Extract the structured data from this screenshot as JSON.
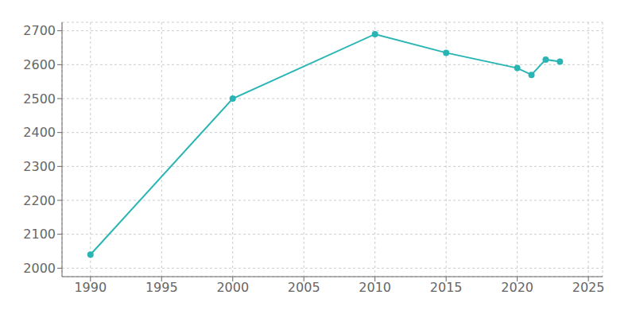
{
  "chart_data": {
    "type": "line",
    "x": [
      1990,
      2000,
      2010,
      2015,
      2020,
      2021,
      2022,
      2023
    ],
    "values": [
      2040,
      2500,
      2690,
      2635,
      2590,
      2570,
      2615,
      2609
    ],
    "color": "#2ab5b5",
    "marker": "circle",
    "xlim": [
      1988,
      2026
    ],
    "xticks": [
      1990,
      1995,
      2000,
      2005,
      2010,
      2015,
      2020,
      2025
    ],
    "ylim": [
      1975,
      2725
    ],
    "yticks": [
      2000,
      2100,
      2200,
      2300,
      2400,
      2500,
      2600,
      2700
    ],
    "grid": true
  }
}
